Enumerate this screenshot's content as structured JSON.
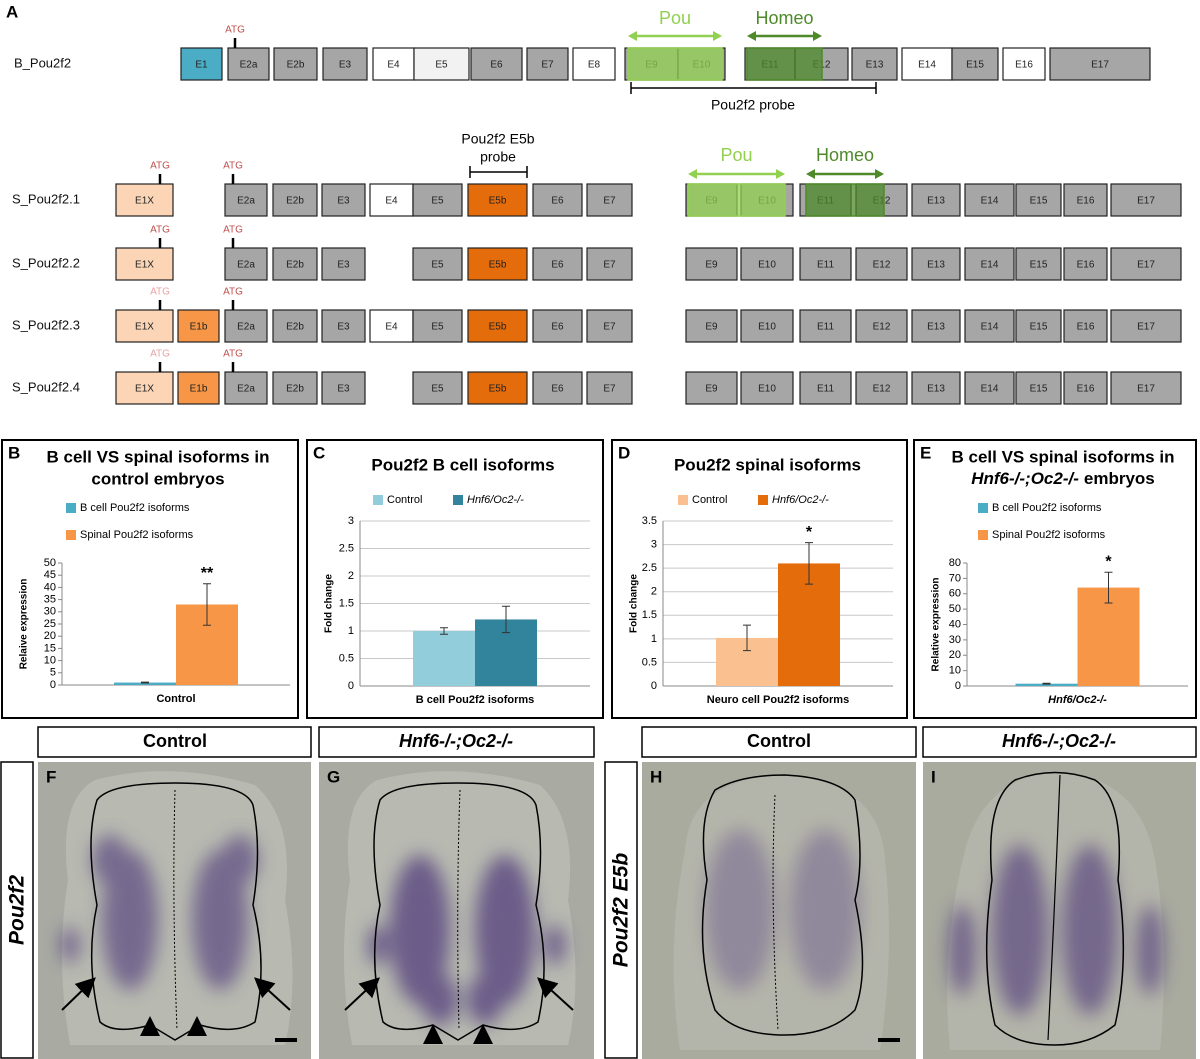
{
  "panel_a": {
    "label": "A",
    "b_row": {
      "name": "B_Pou2f2",
      "atg": {
        "label": "ATG",
        "color": "#c0504d"
      },
      "exons": [
        {
          "label": "E1",
          "fill": "#4bacc6"
        },
        {
          "label": "E2a",
          "fill": "#a6a6a6"
        },
        {
          "label": "E2b",
          "fill": "#a6a6a6"
        },
        {
          "label": "E3",
          "fill": "#a6a6a6"
        },
        {
          "label": "E4",
          "fill": "#ffffff"
        },
        {
          "label": "E5",
          "fill": "#f2f2f2"
        },
        {
          "label": "E6",
          "fill": "#a6a6a6"
        },
        {
          "label": "E7",
          "fill": "#a6a6a6"
        },
        {
          "label": "E8",
          "fill": "#ffffff"
        },
        {
          "label": "E9",
          "fill": "#a6a6a6"
        },
        {
          "label": "E10",
          "fill": "#a6a6a6"
        },
        {
          "label": "E11",
          "fill": "#a6a6a6"
        },
        {
          "label": "E12",
          "fill": "#a6a6a6"
        },
        {
          "label": "E13",
          "fill": "#a6a6a6"
        },
        {
          "label": "E14",
          "fill": "#ffffff"
        },
        {
          "label": "E15",
          "fill": "#a6a6a6"
        },
        {
          "label": "E16",
          "fill": "#ffffff"
        },
        {
          "label": "E17",
          "fill": "#a6a6a6"
        }
      ],
      "domains": [
        {
          "name": "Pou",
          "color": "#92d050"
        },
        {
          "name": "Homeo",
          "color": "#4e8a2a"
        }
      ],
      "probe": [
        "Pou2f2 probe"
      ]
    },
    "s_rows": [
      {
        "name": "S_Pou2f2.1",
        "atg": [
          {
            "label": "ATG",
            "color": "#c0504d"
          },
          {
            "label": "ATG",
            "color": "#c0504d"
          }
        ],
        "left": [
          {
            "label": "E1X",
            "fill": "#fbd5b5"
          },
          {
            "label": "E2a",
            "fill": "#a6a6a6"
          },
          {
            "label": "E2b",
            "fill": "#a6a6a6"
          },
          {
            "label": "E3",
            "fill": "#a6a6a6"
          },
          {
            "label": "E4",
            "fill": "#ffffff"
          },
          {
            "label": "E5",
            "fill": "#a6a6a6"
          },
          {
            "label": "E5b",
            "fill": "#e46c0a"
          },
          {
            "label": "E6",
            "fill": "#a6a6a6"
          },
          {
            "label": "E7",
            "fill": "#a6a6a6"
          }
        ],
        "right": [
          "E9",
          "E10",
          "E11",
          "E12",
          "E13",
          "E14",
          "E15",
          "E16",
          "E17"
        ],
        "domains": [
          {
            "name": "Pou",
            "color": "#92d050"
          },
          {
            "name": "Homeo",
            "color": "#4e8a2a"
          }
        ],
        "probe": [
          "Pou2f2 E5b",
          "probe"
        ]
      },
      {
        "name": "S_Pou2f2.2",
        "atg": [
          {
            "label": "ATG",
            "color": "#c0504d"
          },
          {
            "label": "ATG",
            "color": "#c0504d"
          }
        ],
        "left": [
          {
            "label": "E1X",
            "fill": "#fbd5b5"
          },
          {
            "label": "E2a",
            "fill": "#a6a6a6"
          },
          {
            "label": "E2b",
            "fill": "#a6a6a6"
          },
          {
            "label": "E3",
            "fill": "#a6a6a6"
          },
          {
            "label": "E5",
            "fill": "#a6a6a6"
          },
          {
            "label": "E5b",
            "fill": "#e46c0a"
          },
          {
            "label": "E6",
            "fill": "#a6a6a6"
          },
          {
            "label": "E7",
            "fill": "#a6a6a6"
          }
        ],
        "right": [
          "E9",
          "E10",
          "E11",
          "E12",
          "E13",
          "E14",
          "E15",
          "E16",
          "E17"
        ]
      },
      {
        "name": "S_Pou2f2.3",
        "atg": [
          {
            "label": "ATG",
            "color": "#e6a3a3"
          },
          {
            "label": "ATG",
            "color": "#c0504d"
          }
        ],
        "left": [
          {
            "label": "E1X",
            "fill": "#fbd5b5"
          },
          {
            "label": "E1b",
            "fill": "#f79646"
          },
          {
            "label": "E2a",
            "fill": "#a6a6a6"
          },
          {
            "label": "E2b",
            "fill": "#a6a6a6"
          },
          {
            "label": "E3",
            "fill": "#a6a6a6"
          },
          {
            "label": "E4",
            "fill": "#ffffff"
          },
          {
            "label": "E5",
            "fill": "#a6a6a6"
          },
          {
            "label": "E5b",
            "fill": "#e46c0a"
          },
          {
            "label": "E6",
            "fill": "#a6a6a6"
          },
          {
            "label": "E7",
            "fill": "#a6a6a6"
          }
        ],
        "right": [
          "E9",
          "E10",
          "E11",
          "E12",
          "E13",
          "E14",
          "E15",
          "E16",
          "E17"
        ]
      },
      {
        "name": "S_Pou2f2.4",
        "atg": [
          {
            "label": "ATG",
            "color": "#e6a3a3"
          },
          {
            "label": "ATG",
            "color": "#c0504d"
          }
        ],
        "left": [
          {
            "label": "E1X",
            "fill": "#fbd5b5"
          },
          {
            "label": "E1b",
            "fill": "#f79646"
          },
          {
            "label": "E2a",
            "fill": "#a6a6a6"
          },
          {
            "label": "E2b",
            "fill": "#a6a6a6"
          },
          {
            "label": "E3",
            "fill": "#a6a6a6"
          },
          {
            "label": "E5",
            "fill": "#a6a6a6"
          },
          {
            "label": "E5b",
            "fill": "#e46c0a"
          },
          {
            "label": "E6",
            "fill": "#a6a6a6"
          },
          {
            "label": "E7",
            "fill": "#a6a6a6"
          }
        ],
        "right": [
          "E9",
          "E10",
          "E11",
          "E12",
          "E13",
          "E14",
          "E15",
          "E16",
          "E17"
        ]
      }
    ]
  },
  "chart_data": [
    {
      "type": "bar",
      "label": "B",
      "title_lines": [
        "B cell VS spinal isoforms in",
        "control embryos"
      ],
      "y_label": "Relaive expression",
      "categories": [
        "Control"
      ],
      "series": [
        {
          "name": "B cell Pou2f2 isoforms",
          "color": "#4bacc6",
          "values": [
            1
          ],
          "errors": [
            0.2
          ]
        },
        {
          "name": "Spinal Pou2f2 isoforms",
          "color": "#f79646",
          "values": [
            33
          ],
          "errors": [
            8.5
          ],
          "significance": "**"
        }
      ],
      "ylim": [
        0,
        50
      ],
      "yticks": [
        0,
        5,
        10,
        15,
        20,
        25,
        30,
        35,
        40,
        45,
        50
      ],
      "grid": false
    },
    {
      "type": "bar",
      "label": "C",
      "title_lines": [
        "Pou2f2 B cell isoforms"
      ],
      "y_label": "Fold change",
      "categories": [
        "B cell Pou2f2 isoforms"
      ],
      "series": [
        {
          "name": "Control",
          "color": "#92cddc",
          "values": [
            1.0
          ],
          "errors": [
            0.06
          ]
        },
        {
          "name": "Hnf6/Oc2-/-",
          "italic": true,
          "color": "#31849b",
          "values": [
            1.21
          ],
          "errors": [
            0.24
          ]
        }
      ],
      "ylim": [
        0,
        3
      ],
      "yticks": [
        0,
        0.5,
        1,
        1.5,
        2,
        2.5,
        3
      ],
      "grid": true
    },
    {
      "type": "bar",
      "label": "D",
      "title_lines": [
        "Pou2f2 spinal isoforms"
      ],
      "y_label": "Fold change",
      "categories": [
        "Neuro cell Pou2f2 isoforms"
      ],
      "series": [
        {
          "name": "Control",
          "color": "#fac090",
          "values": [
            1.02
          ],
          "errors": [
            0.27
          ]
        },
        {
          "name": "Hnf6/Oc2-/-",
          "italic": true,
          "color": "#e46c0a",
          "values": [
            2.6
          ],
          "errors": [
            0.44
          ],
          "significance": "*"
        }
      ],
      "ylim": [
        0,
        3.5
      ],
      "yticks": [
        0,
        0.5,
        1,
        1.5,
        2,
        2.5,
        3,
        3.5
      ],
      "grid": true
    },
    {
      "type": "bar",
      "label": "E",
      "title_lines": [
        "B cell VS spinal isoforms in"
      ],
      "title_italic": "Hnf6-/-;Oc2-/-",
      "title_tail": "embryos",
      "y_label": "Relative expression",
      "categories": [
        "Hnf6/Oc2-/-"
      ],
      "categories_italic": true,
      "series": [
        {
          "name": "B cell Pou2f2 isoforms",
          "color": "#4bacc6",
          "values": [
            1.5
          ],
          "errors": [
            0.3
          ]
        },
        {
          "name": "Spinal Pou2f2 isoforms",
          "color": "#f79646",
          "values": [
            64
          ],
          "errors": [
            10
          ],
          "significance": "*"
        }
      ],
      "ylim": [
        0,
        80
      ],
      "yticks": [
        0,
        10,
        20,
        30,
        40,
        50,
        60,
        70,
        80
      ],
      "grid": false
    }
  ],
  "images": {
    "headers": [
      "Control",
      "Hnf6-/-;Oc2-/-",
      "Control",
      "Hnf6-/-;Oc2-/-"
    ],
    "side_labels": [
      "Pou2f2",
      "Pou2f2 E5b"
    ],
    "panels": [
      "F",
      "G",
      "H",
      "I"
    ]
  }
}
